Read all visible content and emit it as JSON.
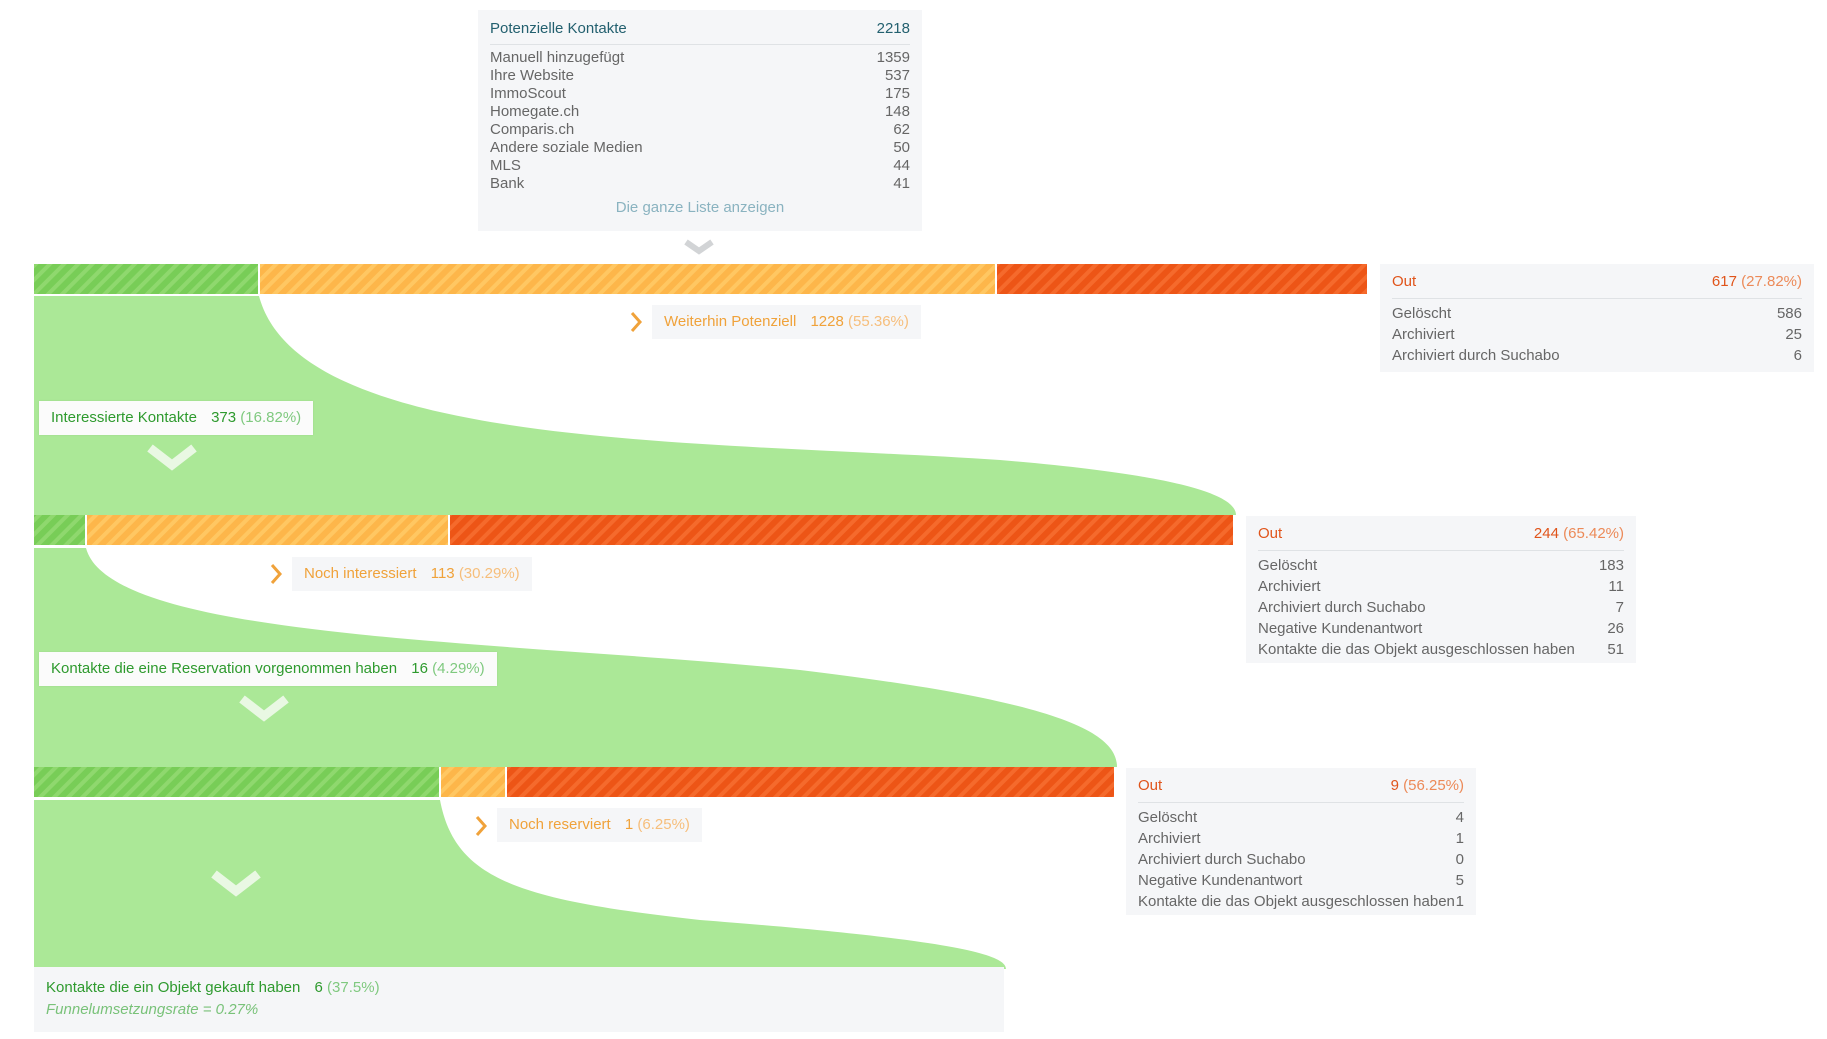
{
  "sources": {
    "title": "Potenzielle Kontakte",
    "total": "2218",
    "items": [
      {
        "label": "Manuell hinzugefügt",
        "value": "1359"
      },
      {
        "label": "Ihre Website",
        "value": "537"
      },
      {
        "label": "ImmoScout",
        "value": "175"
      },
      {
        "label": "Homegate.ch",
        "value": "148"
      },
      {
        "label": "Comparis.ch",
        "value": "62"
      },
      {
        "label": "Andere soziale Medien",
        "value": "50"
      },
      {
        "label": "MLS",
        "value": "44"
      },
      {
        "label": "Bank",
        "value": "41"
      }
    ],
    "show_all": "Die ganze Liste anzeigen"
  },
  "stage1": {
    "continue_label": "Weiterhin Potenziell",
    "continue_count": "1228",
    "continue_pct": "(55.36%)",
    "next_label": "Interessierte Kontakte",
    "next_count": "373",
    "next_pct": "(16.82%)",
    "out": {
      "title": "Out",
      "count": "617",
      "pct": "(27.82%)",
      "rows": [
        {
          "label": "Gelöscht",
          "value": "586"
        },
        {
          "label": "Archiviert",
          "value": "25"
        },
        {
          "label": "Archiviert durch Suchabo",
          "value": "6"
        }
      ]
    }
  },
  "stage2": {
    "continue_label": "Noch interessiert",
    "continue_count": "113",
    "continue_pct": "(30.29%)",
    "next_label": "Kontakte die eine Reservation vorgenommen haben",
    "next_count": "16",
    "next_pct": "(4.29%)",
    "out": {
      "title": "Out",
      "count": "244",
      "pct": "(65.42%)",
      "rows": [
        {
          "label": "Gelöscht",
          "value": "183"
        },
        {
          "label": "Archiviert",
          "value": "11"
        },
        {
          "label": "Archiviert durch Suchabo",
          "value": "7"
        },
        {
          "label": "Negative Kundenantwort",
          "value": "26"
        },
        {
          "label": "Kontakte die das Objekt ausgeschlossen haben",
          "value": "51"
        }
      ]
    }
  },
  "stage3": {
    "continue_label": "Noch reserviert",
    "continue_count": "1",
    "continue_pct": "(6.25%)",
    "out": {
      "title": "Out",
      "count": "9",
      "pct": "(56.25%)",
      "rows": [
        {
          "label": "Gelöscht",
          "value": "4"
        },
        {
          "label": "Archiviert",
          "value": "1"
        },
        {
          "label": "Archiviert durch Suchabo",
          "value": "0"
        },
        {
          "label": "Negative Kundenantwort",
          "value": "5"
        },
        {
          "label": "Kontakte die das Objekt ausgeschlossen haben",
          "value": "1"
        }
      ]
    }
  },
  "final": {
    "label": "Kontakte die ein Objekt gekauft haben",
    "count": "6",
    "pct": "(37.5%)",
    "rate": "Funnelumsetzungsrate = 0.27%"
  },
  "colors": {
    "green_fill": "#abe897",
    "green_bar": "#78cd57",
    "orange_bar": "#fdb64a",
    "red_bar": "#ed5516",
    "chevron_green": "#e9f8e3",
    "chevron_grey": "#d2d4d6"
  }
}
